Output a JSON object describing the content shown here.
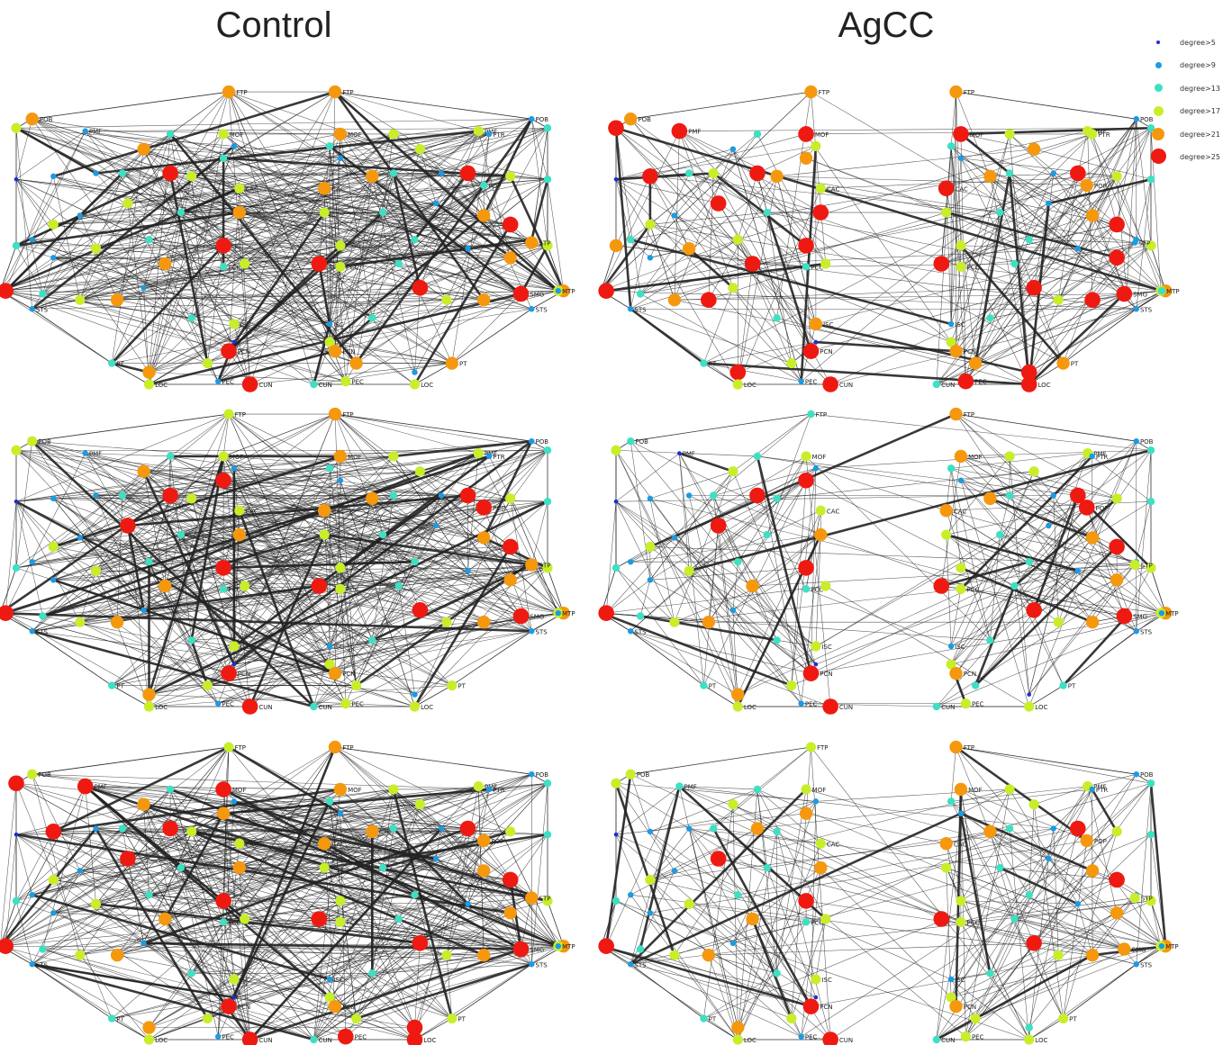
{
  "titles": {
    "left": "Control",
    "right": "AgCC"
  },
  "legend": [
    {
      "label": "degree>5",
      "color": "#1c2fd6"
    },
    {
      "label": "degree>9",
      "color": "#1a9be3"
    },
    {
      "label": "degree>13",
      "color": "#3de0c3"
    },
    {
      "label": "degree>17",
      "color": "#c8ee2a"
    },
    {
      "label": "degree>21",
      "color": "#f5980e"
    },
    {
      "label": "degree>25",
      "color": "#ee1a12"
    }
  ],
  "panels": [
    {
      "group": "Control",
      "row": 1,
      "levels": [
        4,
        1,
        4,
        3,
        2,
        3,
        1,
        2,
        4,
        1,
        5,
        3,
        2,
        1,
        0,
        3,
        4,
        2,
        3,
        1,
        3,
        2,
        1,
        2,
        5,
        3,
        1,
        4,
        2,
        3,
        0,
        5,
        2,
        1,
        3,
        4,
        1,
        2,
        3,
        0,
        5,
        3,
        4,
        2,
        1,
        5,
        3,
        4,
        3,
        1,
        2,
        3,
        4,
        2,
        1,
        3,
        5,
        2,
        4,
        1,
        3,
        2,
        4,
        3,
        2,
        1,
        4,
        5,
        3,
        1,
        2,
        3,
        1,
        4,
        2,
        3,
        5,
        4,
        3,
        2,
        1,
        4,
        3,
        5,
        2,
        1,
        3,
        4
      ]
    },
    {
      "group": "AgCC",
      "row": 1,
      "levels": [
        4,
        5,
        4,
        5,
        2,
        5,
        3,
        4,
        1,
        2,
        5,
        4,
        3,
        5,
        0,
        3,
        5,
        2,
        5,
        1,
        3,
        4,
        2,
        3,
        5,
        4,
        1,
        5,
        2,
        3,
        0,
        5,
        2,
        1,
        4,
        5,
        3,
        2,
        4,
        0,
        5,
        3,
        5,
        2,
        1,
        5,
        3,
        4,
        3,
        1,
        2,
        3,
        5,
        2,
        1,
        4,
        5,
        2,
        4,
        1,
        3,
        2,
        5,
        3,
        2,
        1,
        4,
        5,
        3,
        1,
        2,
        3,
        1,
        5,
        2,
        3,
        5,
        4,
        3,
        2,
        1,
        5,
        3,
        5,
        2,
        1,
        3,
        4
      ]
    },
    {
      "group": "Control",
      "row": 2,
      "levels": [
        3,
        1,
        3,
        3,
        2,
        3,
        1,
        5,
        4,
        1,
        5,
        3,
        2,
        1,
        0,
        3,
        4,
        2,
        5,
        1,
        3,
        2,
        1,
        2,
        5,
        3,
        1,
        4,
        2,
        3,
        0,
        5,
        2,
        1,
        3,
        4,
        1,
        2,
        3,
        0,
        5,
        3,
        4,
        2,
        1,
        5,
        3,
        4,
        3,
        1,
        2,
        3,
        4,
        2,
        1,
        3,
        5,
        2,
        4,
        1,
        3,
        2,
        4,
        3,
        2,
        1,
        4,
        5,
        3,
        1,
        2,
        3,
        1,
        4,
        2,
        3,
        5,
        4,
        3,
        2,
        1,
        4,
        3,
        5,
        2,
        1,
        3,
        4
      ]
    },
    {
      "group": "AgCC",
      "row": 2,
      "levels": [
        2,
        0,
        2,
        3,
        2,
        3,
        1,
        5,
        3,
        1,
        5,
        2,
        2,
        1,
        0,
        3,
        4,
        2,
        5,
        1,
        3,
        2,
        1,
        2,
        5,
        3,
        1,
        4,
        2,
        3,
        0,
        5,
        2,
        1,
        3,
        4,
        1,
        2,
        3,
        0,
        5,
        3,
        4,
        2,
        1,
        5,
        3,
        4,
        3,
        1,
        2,
        3,
        4,
        2,
        1,
        3,
        5,
        2,
        4,
        1,
        3,
        2,
        4,
        3,
        2,
        1,
        4,
        5,
        3,
        1,
        2,
        3,
        1,
        4,
        2,
        3,
        5,
        4,
        3,
        2,
        1,
        4,
        3,
        5,
        2,
        1,
        3,
        4
      ]
    },
    {
      "group": "Control",
      "row": 3,
      "levels": [
        3,
        5,
        3,
        5,
        2,
        5,
        1,
        4,
        4,
        1,
        5,
        3,
        2,
        5,
        0,
        3,
        4,
        2,
        5,
        1,
        3,
        2,
        1,
        2,
        5,
        3,
        1,
        4,
        2,
        3,
        0,
        5,
        2,
        1,
        3,
        4,
        1,
        2,
        3,
        0,
        5,
        3,
        4,
        2,
        1,
        5,
        3,
        4,
        3,
        1,
        2,
        3,
        4,
        2,
        1,
        3,
        5,
        2,
        4,
        1,
        3,
        2,
        4,
        3,
        2,
        1,
        4,
        5,
        3,
        1,
        2,
        3,
        1,
        4,
        2,
        3,
        5,
        4,
        3,
        2,
        1,
        4,
        3,
        5,
        2,
        1,
        3,
        4
      ]
    },
    {
      "group": "AgCC",
      "row": 3,
      "levels": [
        3,
        2,
        3,
        3,
        2,
        3,
        1,
        4,
        3,
        1,
        4,
        2,
        2,
        1,
        0,
        3,
        4,
        2,
        5,
        1,
        3,
        2,
        1,
        2,
        5,
        3,
        1,
        4,
        2,
        3,
        0,
        5,
        2,
        1,
        3,
        4,
        1,
        2,
        3,
        0,
        5,
        3,
        4,
        2,
        1,
        5,
        3,
        4,
        3,
        1,
        2,
        3,
        4,
        2,
        1,
        3,
        5,
        2,
        4,
        1,
        3,
        2,
        4,
        3,
        2,
        1,
        4,
        5,
        3,
        1,
        2,
        3,
        1,
        4,
        2,
        3,
        5,
        4,
        3,
        2,
        1,
        4,
        3,
        5,
        2,
        1,
        3,
        4
      ]
    }
  ],
  "node_labels": {
    "ftp": "FTP",
    "pob": "POB",
    "pmf": "PMF",
    "mof": "MOF",
    "ptr": "PTR",
    "pop": "POP",
    "cac": "CAC",
    "pcc": "PCC",
    "stp": "STP",
    "mtp": "MTP",
    "sts": "STS",
    "smg": "SMG",
    "isc": "ISC",
    "pcn": "PCN",
    "pt": "PT",
    "pec": "PEC",
    "cun": "CUN",
    "loc": "LOC"
  }
}
